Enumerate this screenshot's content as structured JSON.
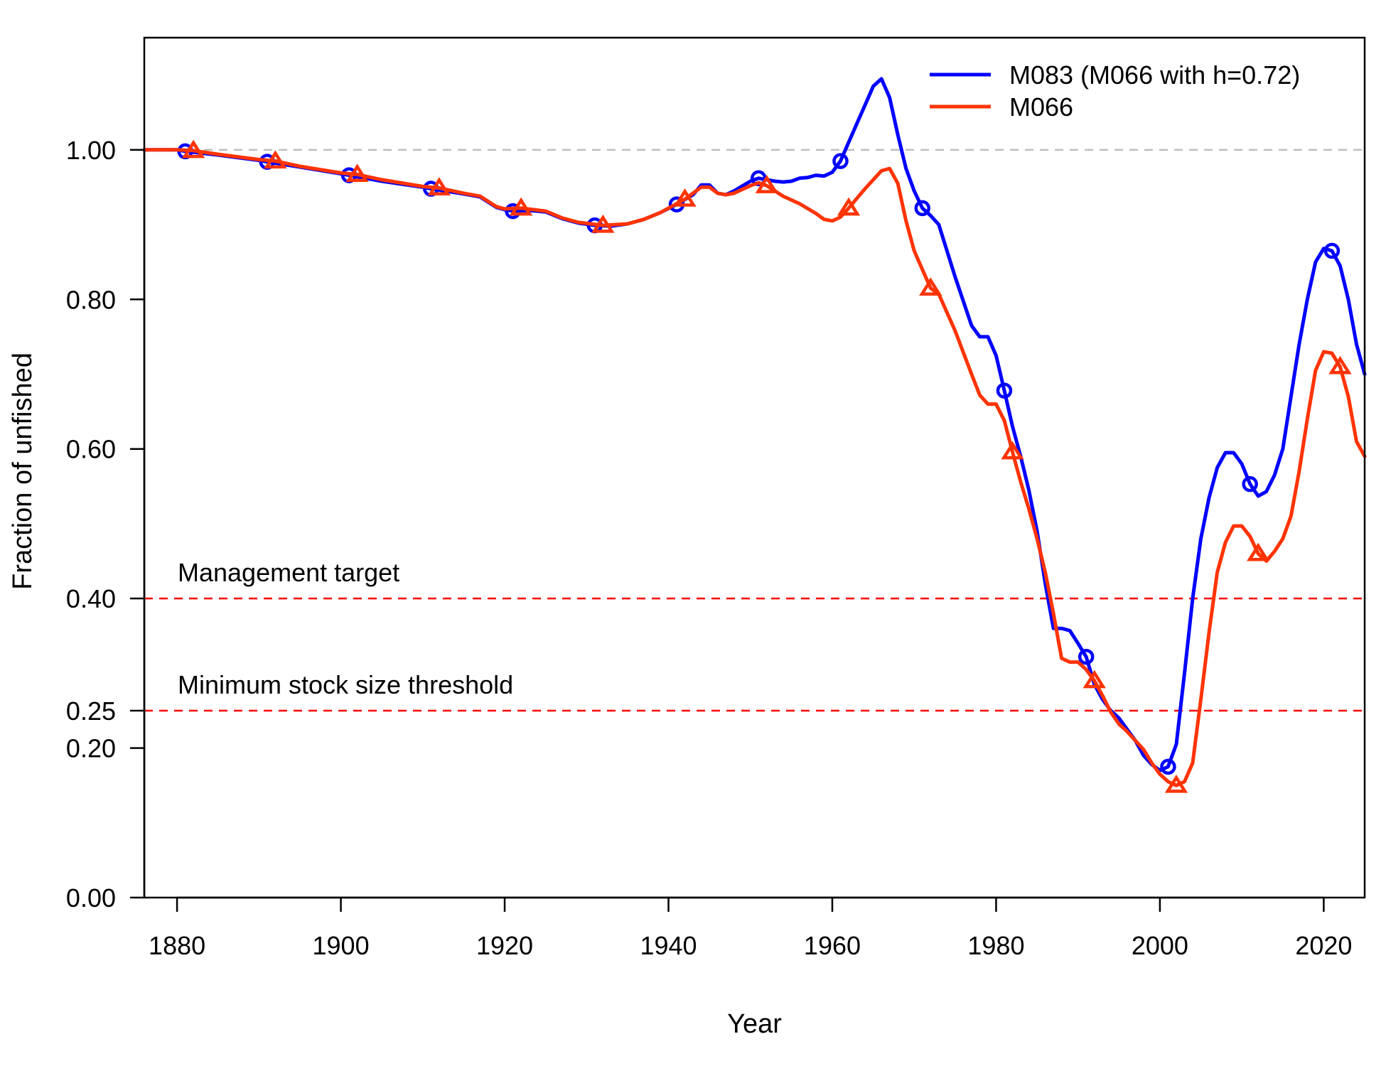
{
  "chart_data": {
    "type": "line",
    "title": "",
    "xlabel": "Year",
    "ylabel": "Fraction of unfished",
    "xlim": [
      1876,
      2025
    ],
    "ylim": [
      0,
      1.15
    ],
    "x_ticks": [
      1880,
      1900,
      1920,
      1940,
      1960,
      1980,
      2000,
      2020
    ],
    "y_ticks": [
      0.0,
      0.2,
      0.25,
      0.4,
      0.6,
      0.8,
      1.0
    ],
    "y_tick_labels": [
      "0.00",
      "0.20",
      "0.25",
      "0.40",
      "0.60",
      "0.80",
      "1.00"
    ],
    "grid": false,
    "legend_position": "top-right",
    "reference_lines": [
      {
        "y": 1.0,
        "color": "#bebebe",
        "style": "dashed",
        "label": ""
      },
      {
        "y": 0.4,
        "color": "#ff0000",
        "style": "dashed",
        "label": "Management target"
      },
      {
        "y": 0.25,
        "color": "#ff0000",
        "style": "dashed",
        "label": "Minimum stock size threshold"
      }
    ],
    "series": [
      {
        "name": "M083 (M066 with h=0.72)",
        "color": "#0000ff",
        "marker": "circle",
        "marker_years": [
          1881,
          1891,
          1901,
          1911,
          1921,
          1931,
          1941,
          1951,
          1961,
          1971,
          1981,
          1991,
          2001,
          2011,
          2021
        ],
        "x": [
          1876,
          1880,
          1881,
          1885,
          1890,
          1891,
          1895,
          1900,
          1901,
          1905,
          1910,
          1911,
          1915,
          1917,
          1919,
          1920,
          1921,
          1923,
          1925,
          1927,
          1929,
          1931,
          1933,
          1935,
          1937,
          1939,
          1941,
          1943,
          1944,
          1945,
          1946,
          1947,
          1948,
          1950,
          1951,
          1952,
          1953,
          1954,
          1955,
          1956,
          1957,
          1958,
          1959,
          1960,
          1961,
          1962,
          1963,
          1964,
          1965,
          1966,
          1967,
          1968,
          1969,
          1970,
          1971,
          1972,
          1973,
          1975,
          1977,
          1978,
          1979,
          1980,
          1981,
          1982,
          1983,
          1984,
          1985,
          1986,
          1987,
          1988,
          1989,
          1990,
          1991,
          1992,
          1993,
          1994,
          1995,
          1996,
          1997,
          1998,
          1999,
          2000,
          2001,
          2002,
          2003,
          2004,
          2005,
          2006,
          2007,
          2008,
          2009,
          2010,
          2011,
          2012,
          2013,
          2014,
          2015,
          2016,
          2017,
          2018,
          2019,
          2020,
          2021,
          2022,
          2023,
          2024,
          2025
        ],
        "y": [
          1.0,
          1.0,
          0.998,
          0.993,
          0.986,
          0.984,
          0.977,
          0.968,
          0.966,
          0.958,
          0.95,
          0.948,
          0.941,
          0.937,
          0.923,
          0.92,
          0.918,
          0.919,
          0.917,
          0.908,
          0.902,
          0.899,
          0.898,
          0.901,
          0.907,
          0.916,
          0.927,
          0.94,
          0.953,
          0.953,
          0.942,
          0.94,
          0.945,
          0.958,
          0.962,
          0.96,
          0.958,
          0.957,
          0.958,
          0.962,
          0.963,
          0.966,
          0.965,
          0.97,
          0.985,
          1.01,
          1.035,
          1.06,
          1.085,
          1.095,
          1.07,
          1.02,
          0.975,
          0.945,
          0.922,
          0.912,
          0.9,
          0.83,
          0.765,
          0.75,
          0.75,
          0.725,
          0.678,
          0.63,
          0.59,
          0.545,
          0.49,
          0.42,
          0.36,
          0.36,
          0.357,
          0.34,
          0.322,
          0.285,
          0.265,
          0.25,
          0.24,
          0.225,
          0.21,
          0.19,
          0.178,
          0.17,
          0.175,
          0.205,
          0.3,
          0.4,
          0.48,
          0.535,
          0.575,
          0.595,
          0.595,
          0.58,
          0.553,
          0.537,
          0.543,
          0.565,
          0.6,
          0.67,
          0.74,
          0.8,
          0.85,
          0.868,
          0.865,
          0.845,
          0.8,
          0.74,
          0.7
        ]
      },
      {
        "name": "M066",
        "color": "#ff3300",
        "marker": "triangle",
        "marker_years": [
          1882,
          1892,
          1902,
          1912,
          1922,
          1932,
          1942,
          1952,
          1962,
          1972,
          1982,
          1992,
          2002,
          2012,
          2022
        ],
        "x": [
          1876,
          1880,
          1882,
          1885,
          1890,
          1892,
          1895,
          1900,
          1902,
          1905,
          1910,
          1912,
          1915,
          1917,
          1919,
          1920,
          1922,
          1925,
          1927,
          1929,
          1932,
          1935,
          1937,
          1939,
          1942,
          1944,
          1945,
          1946,
          1947,
          1948,
          1950,
          1951,
          1952,
          1953,
          1954,
          1956,
          1958,
          1959,
          1960,
          1961,
          1962,
          1963,
          1964,
          1965,
          1966,
          1967,
          1968,
          1969,
          1970,
          1971,
          1972,
          1973,
          1975,
          1977,
          1978,
          1979,
          1980,
          1981,
          1982,
          1983,
          1984,
          1985,
          1986,
          1987,
          1988,
          1989,
          1990,
          1991,
          1992,
          1993,
          1994,
          1995,
          1996,
          1997,
          1998,
          1999,
          2000,
          2001,
          2002,
          2003,
          2004,
          2005,
          2006,
          2007,
          2008,
          2009,
          2010,
          2011,
          2012,
          2013,
          2014,
          2015,
          2016,
          2017,
          2018,
          2019,
          2020,
          2021,
          2022,
          2023,
          2024,
          2025
        ],
        "y": [
          1.0,
          1.0,
          0.999,
          0.994,
          0.987,
          0.985,
          0.978,
          0.969,
          0.967,
          0.96,
          0.951,
          0.949,
          0.942,
          0.938,
          0.924,
          0.921,
          0.922,
          0.918,
          0.909,
          0.903,
          0.899,
          0.901,
          0.907,
          0.916,
          0.934,
          0.95,
          0.95,
          0.942,
          0.94,
          0.942,
          0.952,
          0.956,
          0.952,
          0.945,
          0.938,
          0.928,
          0.915,
          0.907,
          0.905,
          0.91,
          0.922,
          0.935,
          0.948,
          0.96,
          0.972,
          0.975,
          0.955,
          0.905,
          0.865,
          0.84,
          0.815,
          0.807,
          0.758,
          0.7,
          0.672,
          0.66,
          0.66,
          0.638,
          0.596,
          0.556,
          0.52,
          0.48,
          0.435,
          0.38,
          0.32,
          0.315,
          0.315,
          0.305,
          0.29,
          0.27,
          0.248,
          0.232,
          0.222,
          0.21,
          0.198,
          0.18,
          0.165,
          0.155,
          0.15,
          0.155,
          0.18,
          0.265,
          0.355,
          0.435,
          0.475,
          0.497,
          0.497,
          0.483,
          0.46,
          0.45,
          0.463,
          0.48,
          0.51,
          0.57,
          0.64,
          0.705,
          0.73,
          0.728,
          0.71,
          0.67,
          0.61,
          0.59
        ]
      }
    ]
  }
}
